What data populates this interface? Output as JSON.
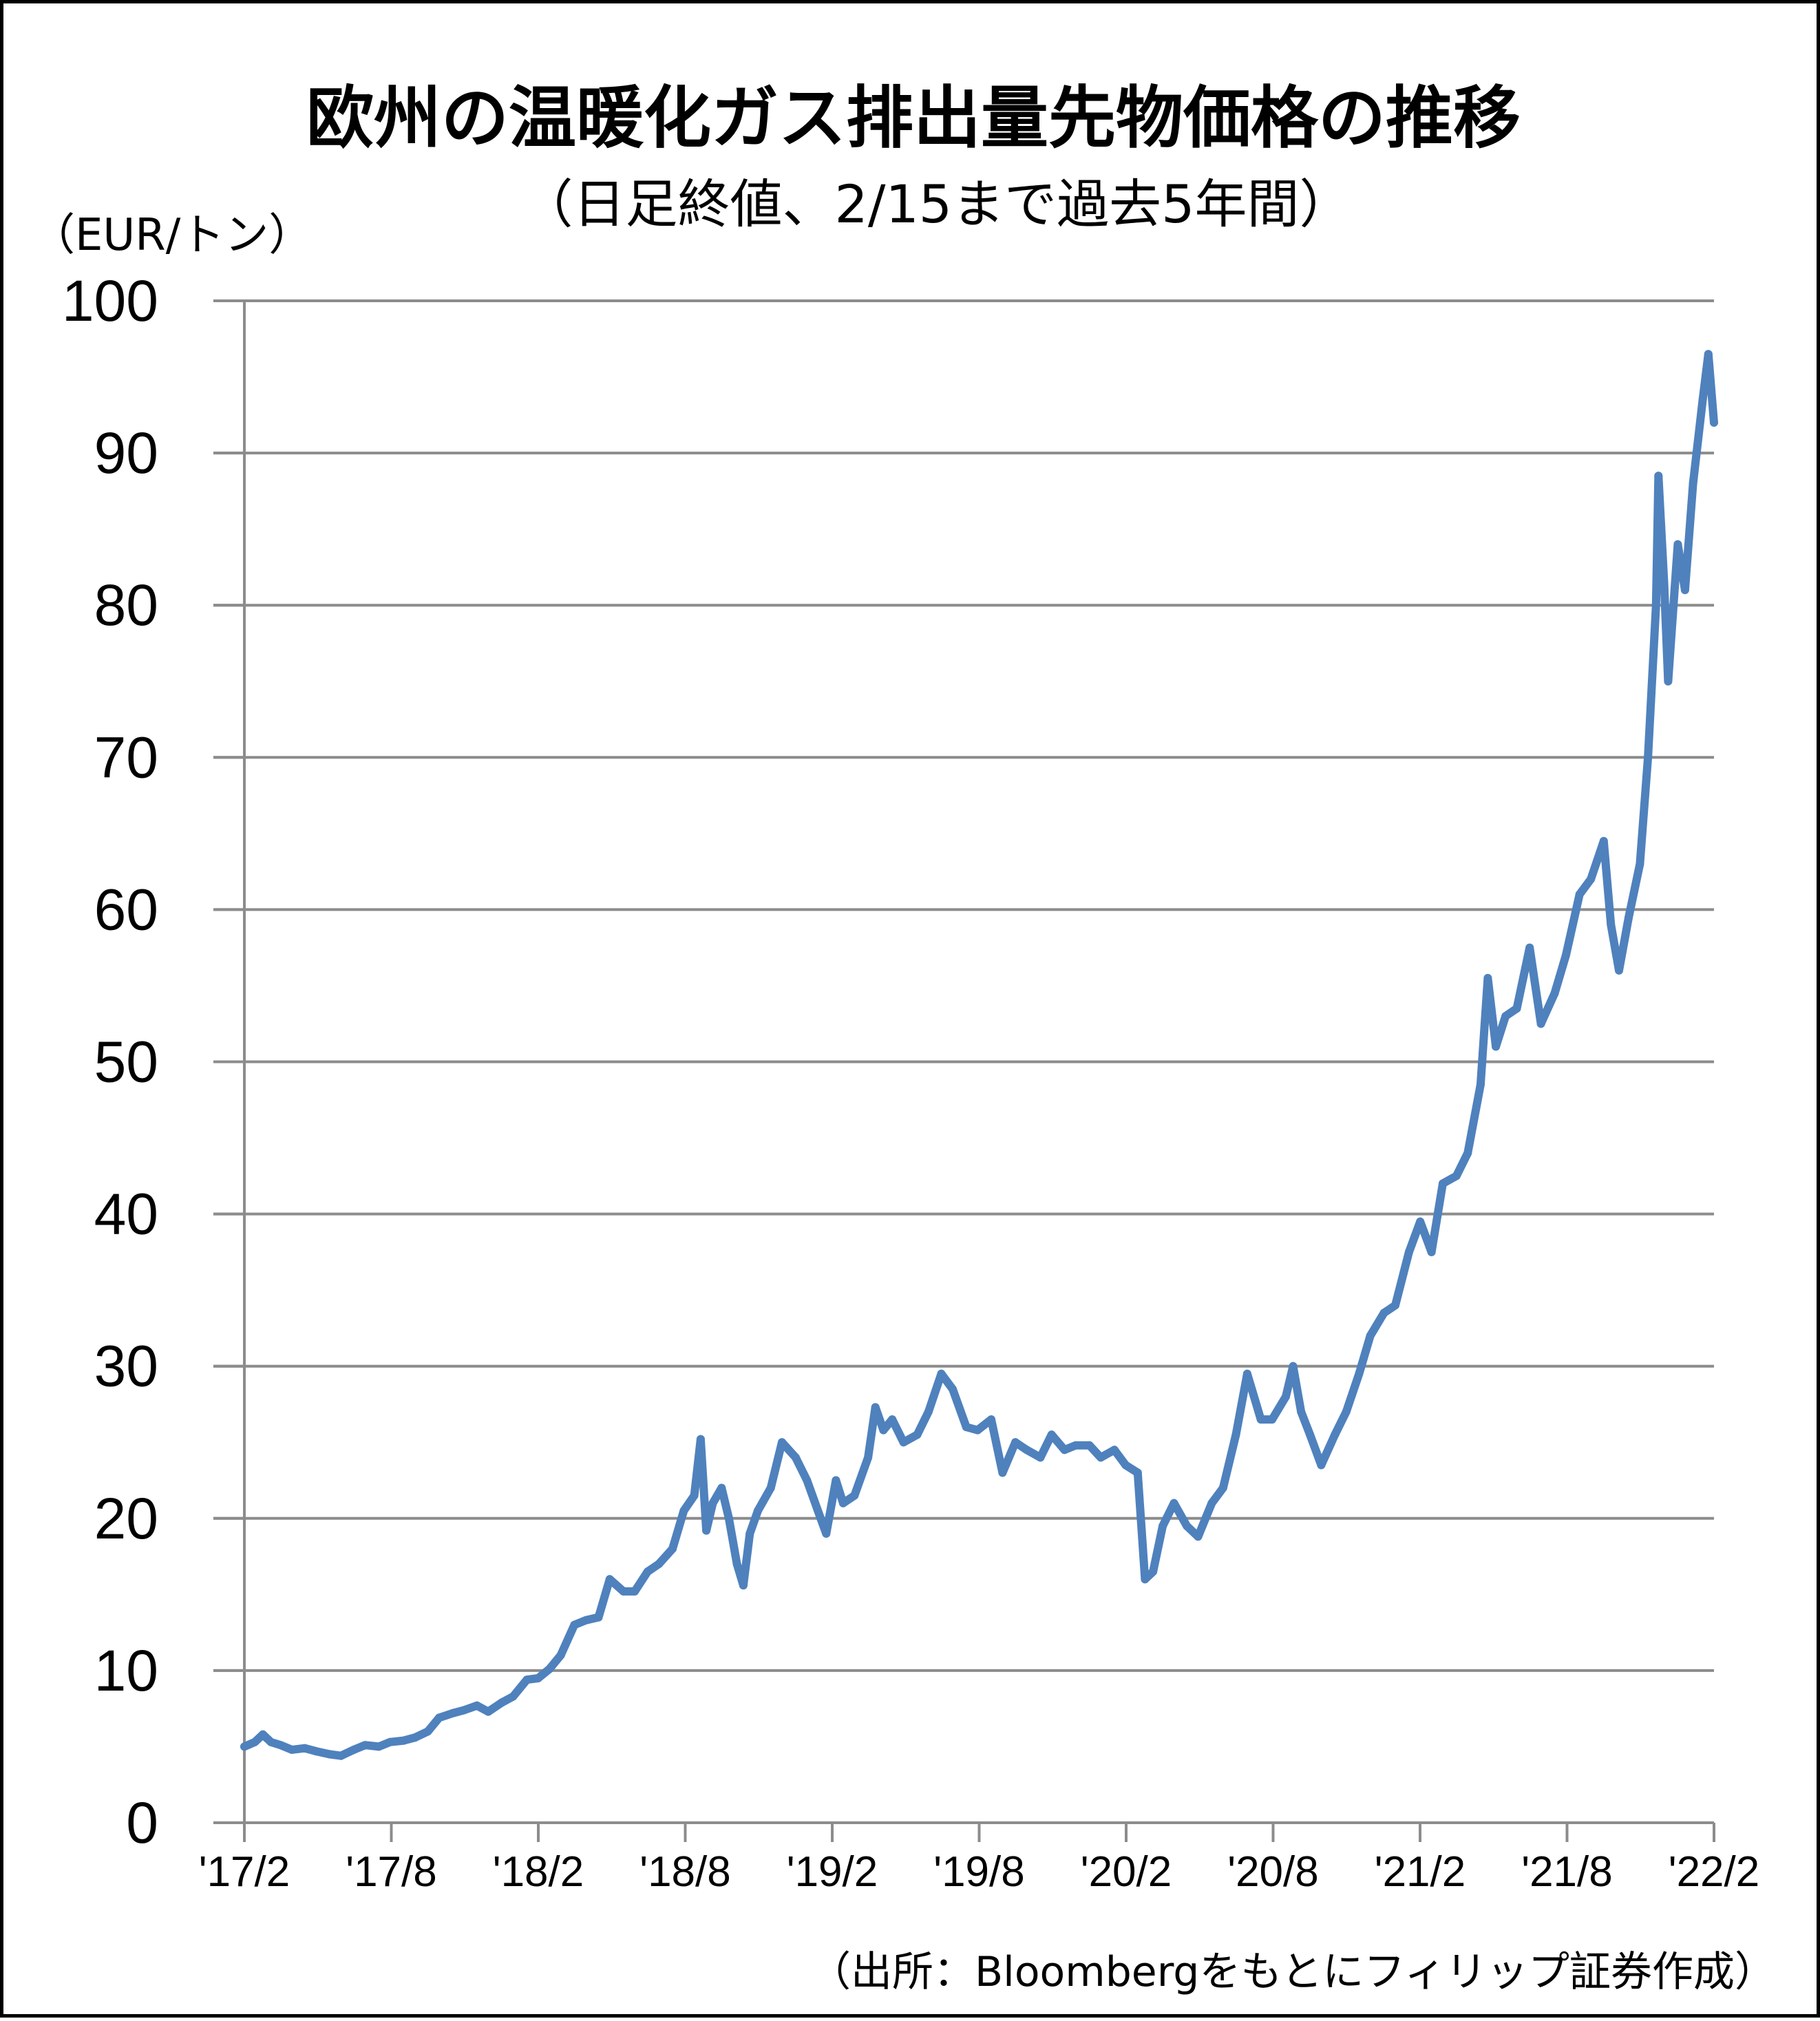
{
  "chart_data": {
    "type": "line",
    "title": "欧州の温暖化ガス排出量先物価格の推移",
    "subtitle": "（日足終値、2/15まで過去5年間）",
    "ylabel": "（EUR/トン）",
    "source": "（出所：Bloombergをもとにフィリップ証券作成）",
    "ylim": [
      0,
      100
    ],
    "xlim": [
      "2017-02-15",
      "2022-02-15"
    ],
    "grid": true,
    "legend": "none",
    "y_ticks": [
      "0",
      "10",
      "20",
      "30",
      "40",
      "50",
      "60",
      "70",
      "80",
      "90",
      "100"
    ],
    "x_tick_labels": [
      "'17/2",
      "'17/8",
      "'18/2",
      "'18/8",
      "'19/2",
      "'19/8",
      "'20/2",
      "'20/8",
      "'21/2",
      "'21/8",
      "'22/2"
    ],
    "line_color": "#4F81BD",
    "series": [
      {
        "points": [
          [
            "2017-02-15",
            5.0
          ],
          [
            "2017-02-28",
            5.3
          ],
          [
            "2017-03-10",
            5.8
          ],
          [
            "2017-03-20",
            5.3
          ],
          [
            "2017-04-01",
            5.1
          ],
          [
            "2017-04-15",
            4.8
          ],
          [
            "2017-05-01",
            4.9
          ],
          [
            "2017-05-15",
            4.7
          ],
          [
            "2017-06-01",
            4.5
          ],
          [
            "2017-06-15",
            4.4
          ],
          [
            "2017-07-01",
            4.8
          ],
          [
            "2017-07-15",
            5.1
          ],
          [
            "2017-08-01",
            5.0
          ],
          [
            "2017-08-15",
            5.3
          ],
          [
            "2017-09-01",
            5.4
          ],
          [
            "2017-09-15",
            5.6
          ],
          [
            "2017-10-01",
            6.0
          ],
          [
            "2017-10-15",
            6.9
          ],
          [
            "2017-11-01",
            7.2
          ],
          [
            "2017-11-15",
            7.4
          ],
          [
            "2017-12-01",
            7.7
          ],
          [
            "2017-12-15",
            7.3
          ],
          [
            "2018-01-01",
            7.9
          ],
          [
            "2018-01-15",
            8.3
          ],
          [
            "2018-02-01",
            9.4
          ],
          [
            "2018-02-15",
            9.5
          ],
          [
            "2018-03-01",
            10.1
          ],
          [
            "2018-03-15",
            11.0
          ],
          [
            "2018-04-01",
            13.0
          ],
          [
            "2018-04-15",
            13.3
          ],
          [
            "2018-05-01",
            13.5
          ],
          [
            "2018-05-15",
            16.0
          ],
          [
            "2018-06-01",
            15.2
          ],
          [
            "2018-06-15",
            15.2
          ],
          [
            "2018-07-01",
            16.5
          ],
          [
            "2018-07-15",
            17.0
          ],
          [
            "2018-08-01",
            18.0
          ],
          [
            "2018-08-15",
            20.5
          ],
          [
            "2018-08-28",
            21.5
          ],
          [
            "2018-09-05",
            25.2
          ],
          [
            "2018-09-12",
            19.2
          ],
          [
            "2018-09-20",
            21.0
          ],
          [
            "2018-10-01",
            22.0
          ],
          [
            "2018-10-10",
            20.0
          ],
          [
            "2018-10-20",
            17.0
          ],
          [
            "2018-10-28",
            15.6
          ],
          [
            "2018-11-05",
            19.0
          ],
          [
            "2018-11-15",
            20.5
          ],
          [
            "2018-12-01",
            22.0
          ],
          [
            "2018-12-15",
            25.0
          ],
          [
            "2019-01-01",
            24.0
          ],
          [
            "2019-01-15",
            22.5
          ],
          [
            "2019-02-01",
            20.0
          ],
          [
            "2019-02-08",
            19.0
          ],
          [
            "2019-02-20",
            22.5
          ],
          [
            "2019-03-01",
            21.0
          ],
          [
            "2019-03-15",
            21.5
          ],
          [
            "2019-04-01",
            24.0
          ],
          [
            "2019-04-10",
            27.3
          ],
          [
            "2019-04-20",
            25.8
          ],
          [
            "2019-05-01",
            26.5
          ],
          [
            "2019-05-15",
            25.0
          ],
          [
            "2019-06-01",
            25.5
          ],
          [
            "2019-06-15",
            27.0
          ],
          [
            "2019-07-01",
            29.5
          ],
          [
            "2019-07-15",
            28.5
          ],
          [
            "2019-08-01",
            26.0
          ],
          [
            "2019-08-15",
            25.8
          ],
          [
            "2019-09-01",
            26.5
          ],
          [
            "2019-09-15",
            23.0
          ],
          [
            "2019-10-01",
            25.0
          ],
          [
            "2019-10-15",
            24.5
          ],
          [
            "2019-11-01",
            24.0
          ],
          [
            "2019-11-15",
            25.5
          ],
          [
            "2019-12-01",
            24.5
          ],
          [
            "2019-12-15",
            24.8
          ],
          [
            "2020-01-01",
            24.8
          ],
          [
            "2020-01-15",
            24.0
          ],
          [
            "2020-02-01",
            24.5
          ],
          [
            "2020-02-15",
            23.5
          ],
          [
            "2020-03-01",
            23.0
          ],
          [
            "2020-03-10",
            16.0
          ],
          [
            "2020-03-20",
            16.5
          ],
          [
            "2020-04-01",
            19.5
          ],
          [
            "2020-04-15",
            21.0
          ],
          [
            "2020-05-01",
            19.5
          ],
          [
            "2020-05-15",
            18.8
          ],
          [
            "2020-06-01",
            21.0
          ],
          [
            "2020-06-15",
            22.0
          ],
          [
            "2020-07-01",
            25.5
          ],
          [
            "2020-07-15",
            29.5
          ],
          [
            "2020-08-01",
            26.5
          ],
          [
            "2020-08-15",
            26.5
          ],
          [
            "2020-09-01",
            28.0
          ],
          [
            "2020-09-10",
            30.0
          ],
          [
            "2020-09-20",
            27.0
          ],
          [
            "2020-10-01",
            25.5
          ],
          [
            "2020-10-15",
            23.5
          ],
          [
            "2020-11-01",
            25.5
          ],
          [
            "2020-11-15",
            27.0
          ],
          [
            "2020-12-01",
            29.5
          ],
          [
            "2020-12-15",
            32.0
          ],
          [
            "2021-01-01",
            33.5
          ],
          [
            "2021-01-15",
            34.0
          ],
          [
            "2021-02-01",
            37.5
          ],
          [
            "2021-02-15",
            39.5
          ],
          [
            "2021-03-01",
            37.5
          ],
          [
            "2021-03-15",
            42.0
          ],
          [
            "2021-04-01",
            42.5
          ],
          [
            "2021-04-15",
            44.0
          ],
          [
            "2021-05-01",
            48.5
          ],
          [
            "2021-05-10",
            55.5
          ],
          [
            "2021-05-20",
            51.0
          ],
          [
            "2021-06-01",
            53.0
          ],
          [
            "2021-06-15",
            53.5
          ],
          [
            "2021-07-01",
            57.5
          ],
          [
            "2021-07-15",
            52.5
          ],
          [
            "2021-08-01",
            54.5
          ],
          [
            "2021-08-15",
            57.0
          ],
          [
            "2021-09-01",
            61.0
          ],
          [
            "2021-09-15",
            62.0
          ],
          [
            "2021-10-01",
            64.5
          ],
          [
            "2021-10-10",
            59.0
          ],
          [
            "2021-10-20",
            56.0
          ],
          [
            "2021-11-01",
            59.5
          ],
          [
            "2021-11-15",
            63.0
          ],
          [
            "2021-11-25",
            70.0
          ],
          [
            "2021-12-05",
            80.0
          ],
          [
            "2021-12-08",
            88.5
          ],
          [
            "2021-12-15",
            81.5
          ],
          [
            "2021-12-20",
            75.0
          ],
          [
            "2022-01-01",
            84.0
          ],
          [
            "2022-01-10",
            81.0
          ],
          [
            "2022-01-20",
            88.0
          ],
          [
            "2022-02-01",
            93.5
          ],
          [
            "2022-02-08",
            96.5
          ],
          [
            "2022-02-15",
            92.0
          ]
        ]
      }
    ]
  }
}
